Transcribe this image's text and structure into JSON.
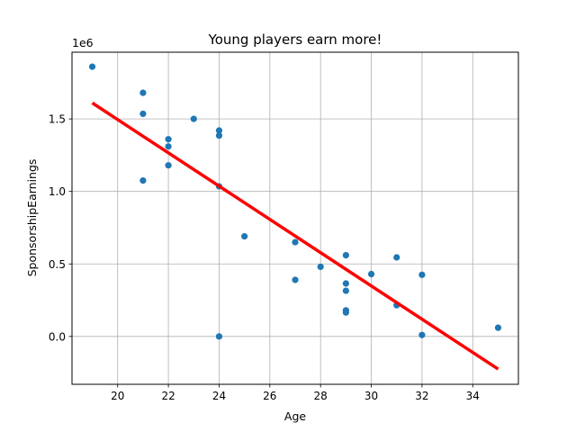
{
  "chart_data": {
    "type": "scatter",
    "title": "Young players earn more!",
    "xlabel": "Age",
    "ylabel": "SponsorshipEarnings",
    "y_offset_label": "1e6",
    "xlim": [
      18.2,
      35.8
    ],
    "ylim": [
      -0.33,
      1.96
    ],
    "x_ticks": [
      20,
      22,
      24,
      26,
      28,
      30,
      32,
      34
    ],
    "x_tick_labels": [
      "20",
      "22",
      "24",
      "26",
      "28",
      "30",
      "32",
      "34"
    ],
    "y_ticks": [
      0.0,
      0.5,
      1.0,
      1.5
    ],
    "y_tick_labels": [
      "0.0",
      "0.5",
      "1.0",
      "1.5"
    ],
    "grid": true,
    "point_color": "#1f77b4",
    "line_color": "#ff0000",
    "points": [
      {
        "x": 19,
        "y": 1.86
      },
      {
        "x": 21,
        "y": 1.68
      },
      {
        "x": 21,
        "y": 1.535
      },
      {
        "x": 21,
        "y": 1.075
      },
      {
        "x": 22,
        "y": 1.36
      },
      {
        "x": 22,
        "y": 1.31
      },
      {
        "x": 22,
        "y": 1.18
      },
      {
        "x": 23,
        "y": 1.5
      },
      {
        "x": 24,
        "y": 1.42
      },
      {
        "x": 24,
        "y": 1.385
      },
      {
        "x": 24,
        "y": 1.035
      },
      {
        "x": 24,
        "y": 0.0
      },
      {
        "x": 25,
        "y": 0.69
      },
      {
        "x": 27,
        "y": 0.65
      },
      {
        "x": 27,
        "y": 0.39
      },
      {
        "x": 28,
        "y": 0.48
      },
      {
        "x": 29,
        "y": 0.56
      },
      {
        "x": 29,
        "y": 0.365
      },
      {
        "x": 29,
        "y": 0.315
      },
      {
        "x": 29,
        "y": 0.18
      },
      {
        "x": 29,
        "y": 0.165
      },
      {
        "x": 30,
        "y": 0.43
      },
      {
        "x": 31,
        "y": 0.545
      },
      {
        "x": 31,
        "y": 0.215
      },
      {
        "x": 32,
        "y": 0.425
      },
      {
        "x": 32,
        "y": 0.01
      },
      {
        "x": 35,
        "y": 0.06
      }
    ],
    "trend_line": {
      "x": [
        19,
        35
      ],
      "y": [
        1.61,
        -0.225
      ]
    }
  }
}
